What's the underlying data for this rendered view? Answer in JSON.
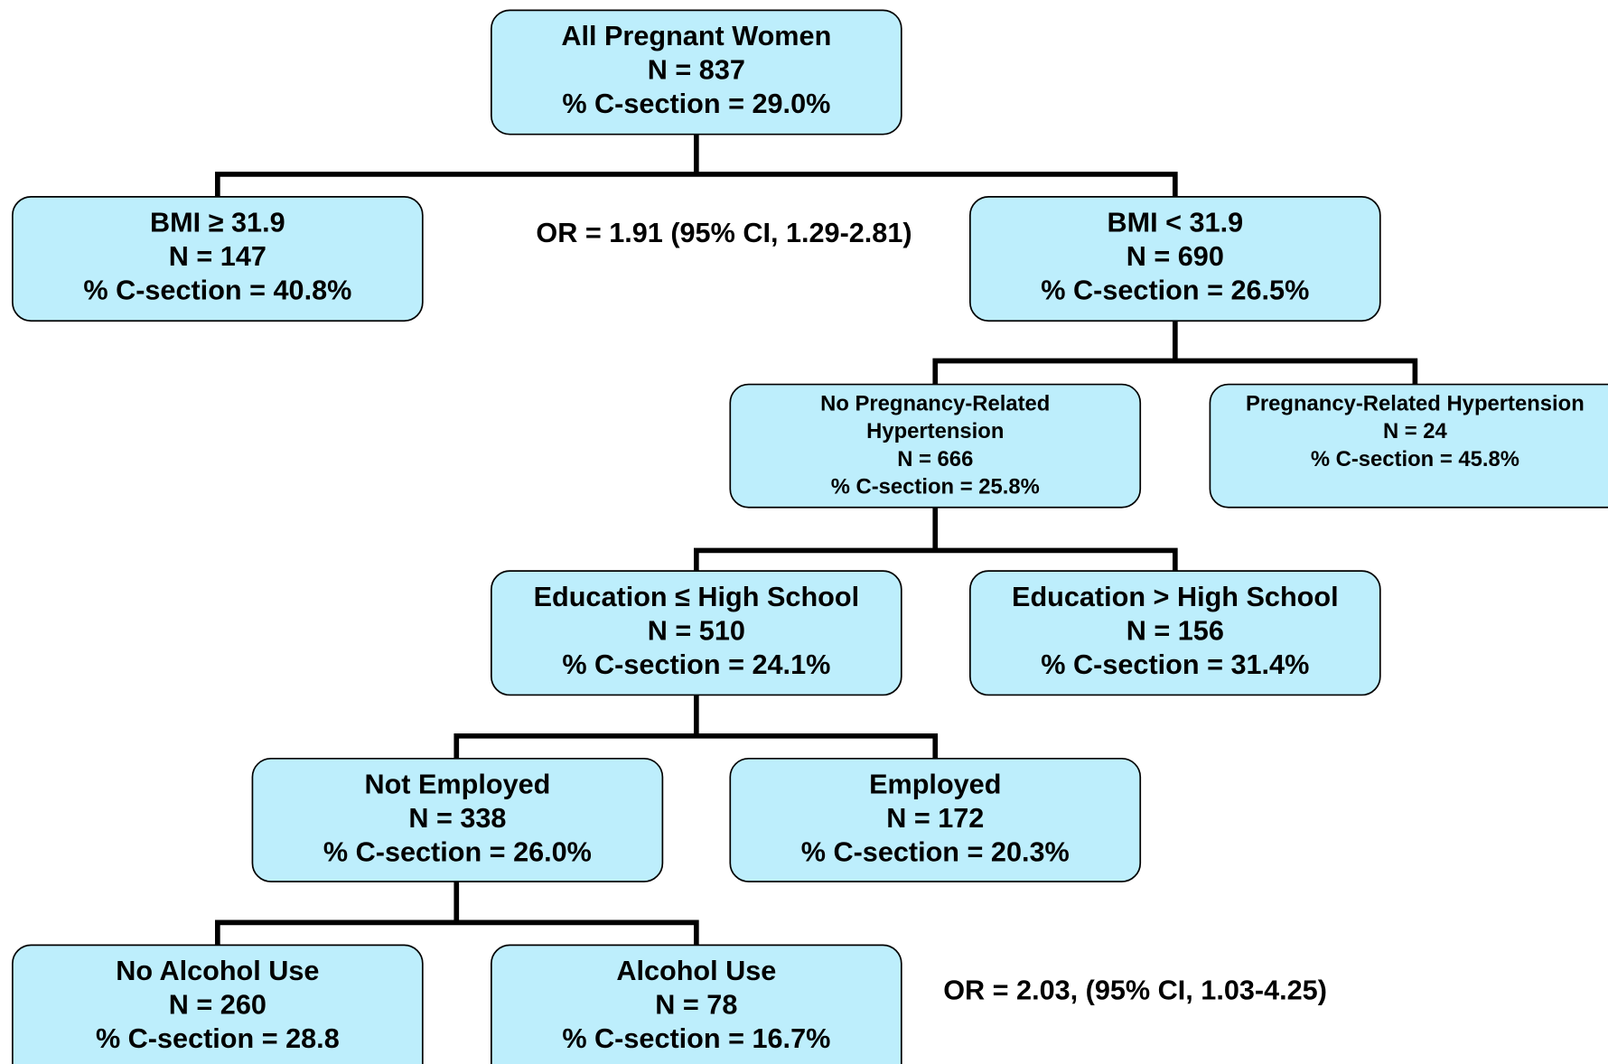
{
  "nodes": [
    {
      "lines": [
        "All Pregnant Women",
        "N = 837",
        "% C-section = 29.0%"
      ]
    },
    {
      "lines": [
        "BMI ≥ 31.9",
        "N = 147",
        "% C-section = 40.8%"
      ]
    },
    {
      "lines": [
        "BMI < 31.9",
        "N = 690",
        "% C-section = 26.5%"
      ]
    },
    {
      "lines": [
        "No Pregnancy-Related",
        "Hypertension",
        "N = 666",
        "% C-section = 25.8%"
      ]
    },
    {
      "lines": [
        "Pregnancy-Related Hypertension",
        "N = 24",
        "% C-section = 45.8%"
      ]
    },
    {
      "lines": [
        "Education ≤ High School",
        "N = 510",
        "% C-section = 24.1%"
      ]
    },
    {
      "lines": [
        "Education > High School",
        "N = 156",
        "% C-section = 31.4%"
      ]
    },
    {
      "lines": [
        "Not Employed",
        "N = 338",
        "% C-section = 26.0%"
      ]
    },
    {
      "lines": [
        "Employed",
        "N = 172",
        "% C-section = 20.3%"
      ]
    },
    {
      "lines": [
        "No Alcohol Use",
        "N = 260",
        "% C-section = 28.8"
      ]
    },
    {
      "lines": [
        "Alcohol Use",
        "N = 78",
        "% C-section = 16.7%"
      ]
    }
  ],
  "annotations": [
    "OR = 1.91 (95% CI, 1.29-2.81)",
    "OR = 2.03, (95% CI, 1.03-4.25)"
  ]
}
